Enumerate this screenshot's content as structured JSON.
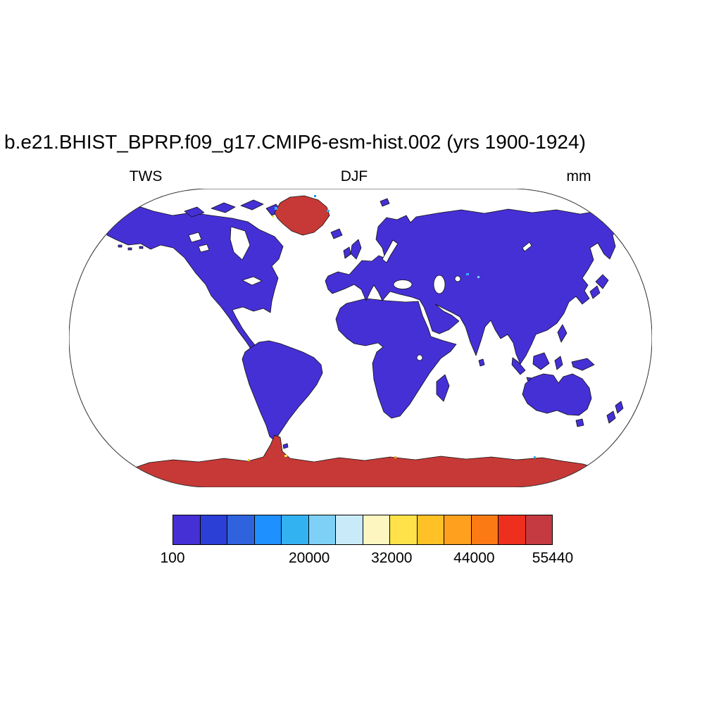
{
  "title": "b.e21.BHIST_BPRP.f09_g17.CMIP6-esm-hist.002 (yrs 1900-1924)",
  "labels": {
    "left": "TWS",
    "center": "DJF",
    "right": "mm"
  },
  "map": {
    "land_color": "#4530d6",
    "ice_color": "#c73936",
    "ocean_color": "#ffffff",
    "coastline_color": "#111111",
    "outline_color": "#333333",
    "lake_color": "#ffffff"
  },
  "chart_data": {
    "type": "heatmap",
    "title": "b.e21.BHIST_BPRP.f09_g17.CMIP6-esm-hist.002 (yrs 1900-1924)",
    "variable": "TWS",
    "season": "DJF",
    "units": "mm",
    "projection": "robinson world map",
    "colorbar": {
      "orientation": "horizontal",
      "min": 100,
      "max": 55440,
      "tick_values": [
        100,
        20000,
        32000,
        44000,
        55440
      ],
      "tick_labels": [
        "100",
        "20000",
        "32000",
        "44000",
        "55440"
      ],
      "colors": [
        "#4530d6",
        "#2b3fd6",
        "#2f63dd",
        "#1e90ff",
        "#33b2f2",
        "#7fd0f6",
        "#c9ebf9",
        "#fdf6c0",
        "#ffe24a",
        "#ffc125",
        "#ffa01e",
        "#fb7a14",
        "#ee2f1e",
        "#c43a40"
      ]
    },
    "values": {
      "most_land": "lowest bin, about 100 mm (blue-violet)",
      "greenland": "highest bin, about 55440 mm (red)",
      "antarctica": "highest bin, about 55440 mm (red)"
    }
  }
}
